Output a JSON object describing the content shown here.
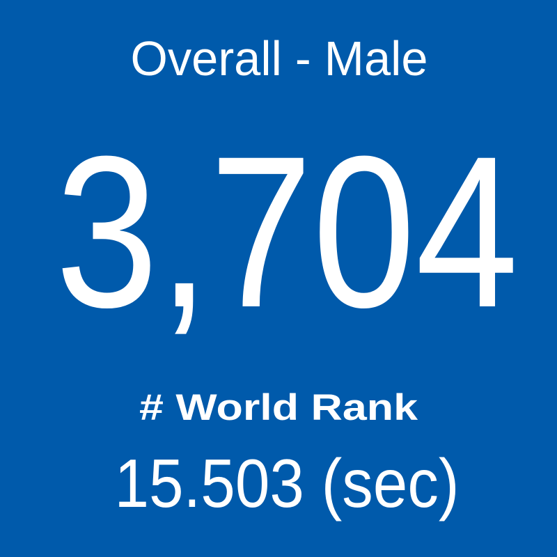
{
  "tile": {
    "title": "Overall - Male",
    "value": "3,704",
    "label": "# World Rank",
    "time": "15.503 (sec)"
  }
}
